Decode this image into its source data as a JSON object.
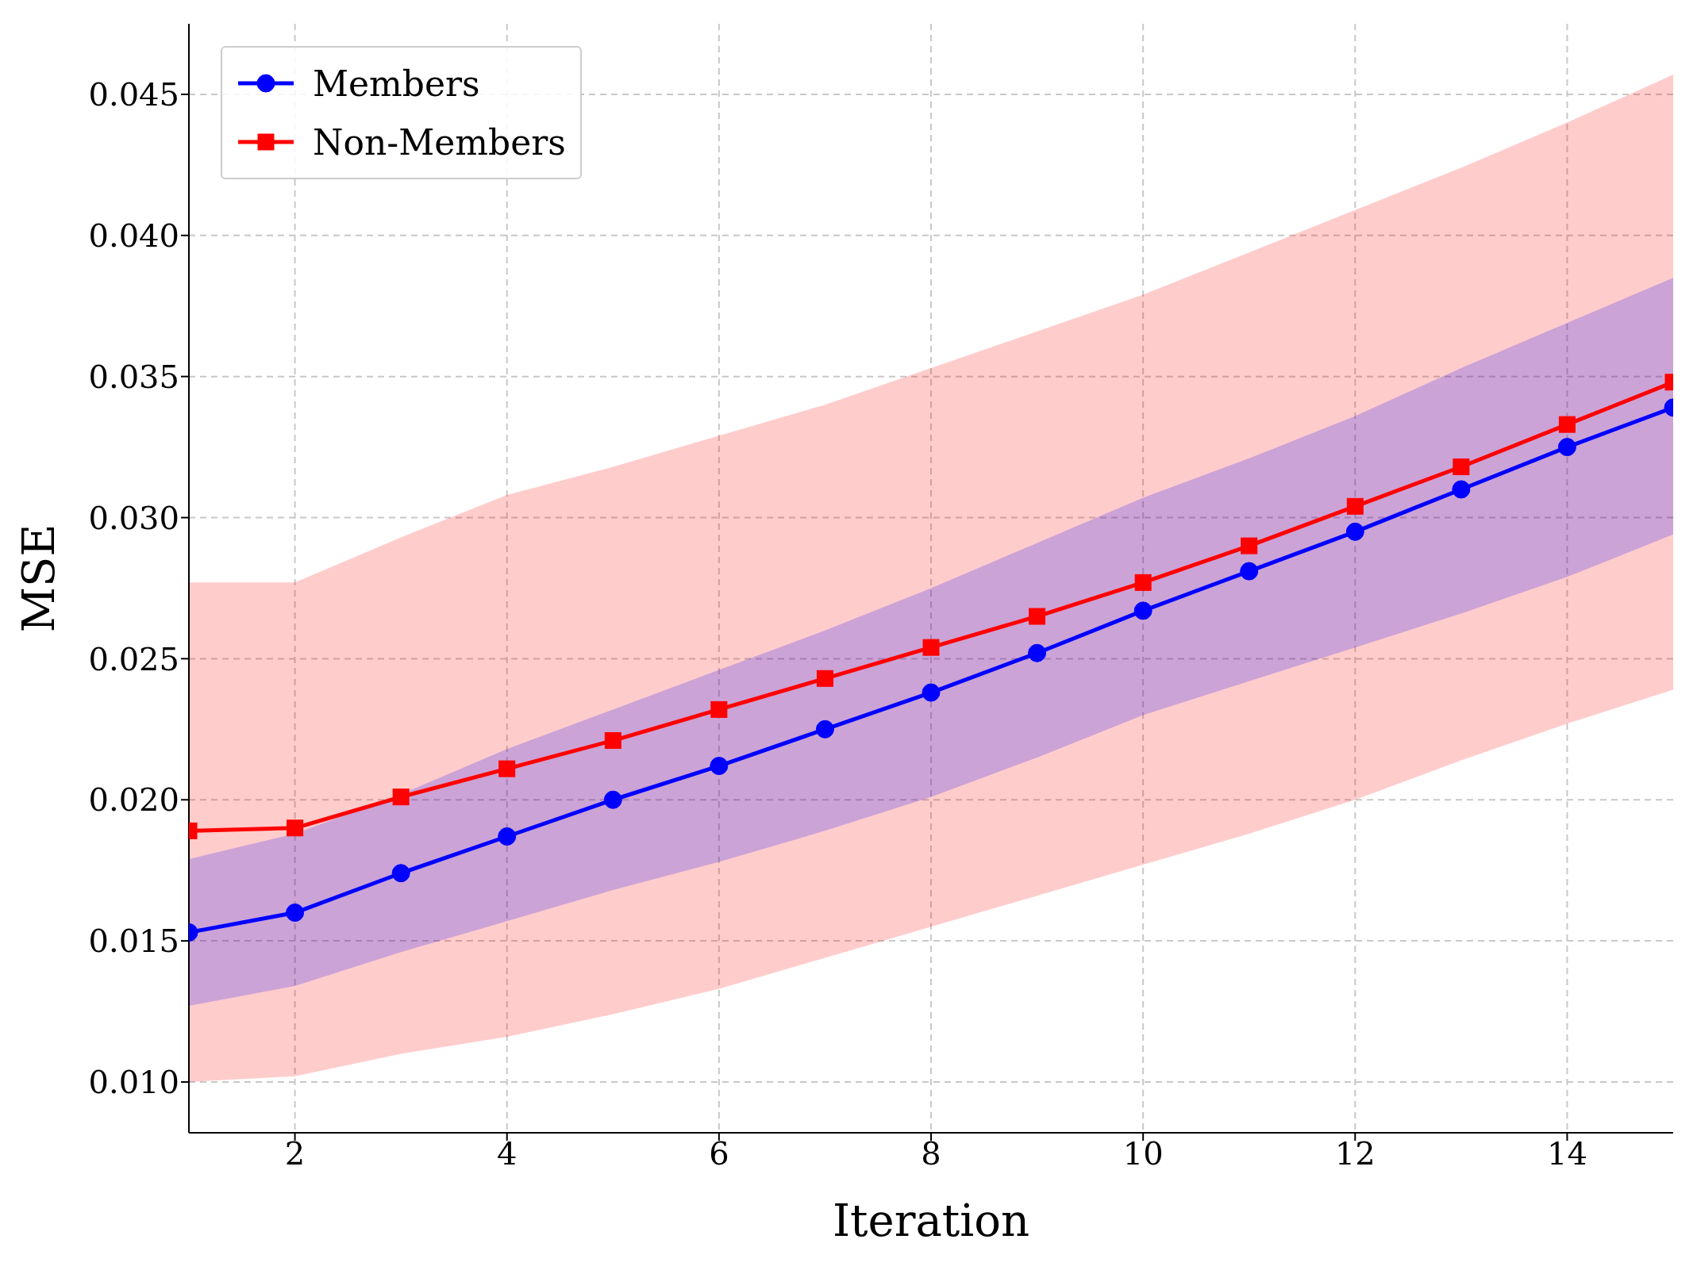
{
  "chart_data": {
    "type": "line",
    "xlabel": "Iteration",
    "ylabel": "MSE",
    "x": [
      1,
      2,
      3,
      4,
      5,
      6,
      7,
      8,
      9,
      10,
      11,
      12,
      13,
      14,
      15
    ],
    "series": [
      {
        "name": "Members",
        "color": "#0000ff",
        "marker": "circle",
        "values": [
          0.0153,
          0.016,
          0.0174,
          0.0187,
          0.02,
          0.0212,
          0.0225,
          0.0238,
          0.0252,
          0.0267,
          0.0281,
          0.0295,
          0.031,
          0.0325,
          0.0339
        ],
        "lower": [
          0.0127,
          0.0134,
          0.0146,
          0.0157,
          0.0168,
          0.0178,
          0.0189,
          0.0201,
          0.0215,
          0.023,
          0.0242,
          0.0254,
          0.0266,
          0.0279,
          0.0294
        ],
        "upper": [
          0.0179,
          0.0188,
          0.0202,
          0.0218,
          0.0232,
          0.0246,
          0.026,
          0.0275,
          0.0291,
          0.0307,
          0.0321,
          0.0336,
          0.0353,
          0.0369,
          0.0385
        ]
      },
      {
        "name": "Non-Members",
        "color": "#ff0000",
        "marker": "square",
        "values": [
          0.0189,
          0.019,
          0.0201,
          0.0211,
          0.0221,
          0.0232,
          0.0243,
          0.0254,
          0.0265,
          0.0277,
          0.029,
          0.0304,
          0.0318,
          0.0333,
          0.0348
        ],
        "lower": [
          0.01,
          0.0102,
          0.011,
          0.0116,
          0.0124,
          0.0133,
          0.0144,
          0.0155,
          0.0166,
          0.0177,
          0.0188,
          0.02,
          0.0214,
          0.0227,
          0.0239
        ],
        "upper": [
          0.0277,
          0.0277,
          0.0293,
          0.0308,
          0.0318,
          0.0329,
          0.034,
          0.0353,
          0.0366,
          0.0379,
          0.0394,
          0.0409,
          0.0424,
          0.044,
          0.0457
        ]
      }
    ],
    "xlim": [
      1,
      15
    ],
    "xticks": [
      2,
      4,
      6,
      8,
      10,
      12,
      14
    ],
    "ylim": [
      0.0082,
      0.0475
    ],
    "yticks": [
      {
        "value": 0.01,
        "label": "0.010"
      },
      {
        "value": 0.015,
        "label": "0.015"
      },
      {
        "value": 0.02,
        "label": "0.020"
      },
      {
        "value": 0.025,
        "label": "0.025"
      },
      {
        "value": 0.03,
        "label": "0.030"
      },
      {
        "value": 0.035,
        "label": "0.035"
      },
      {
        "value": 0.04,
        "label": "0.040"
      },
      {
        "value": 0.045,
        "label": "0.045"
      }
    ],
    "grid": true,
    "legend": "top left",
    "line_style": "solid"
  }
}
